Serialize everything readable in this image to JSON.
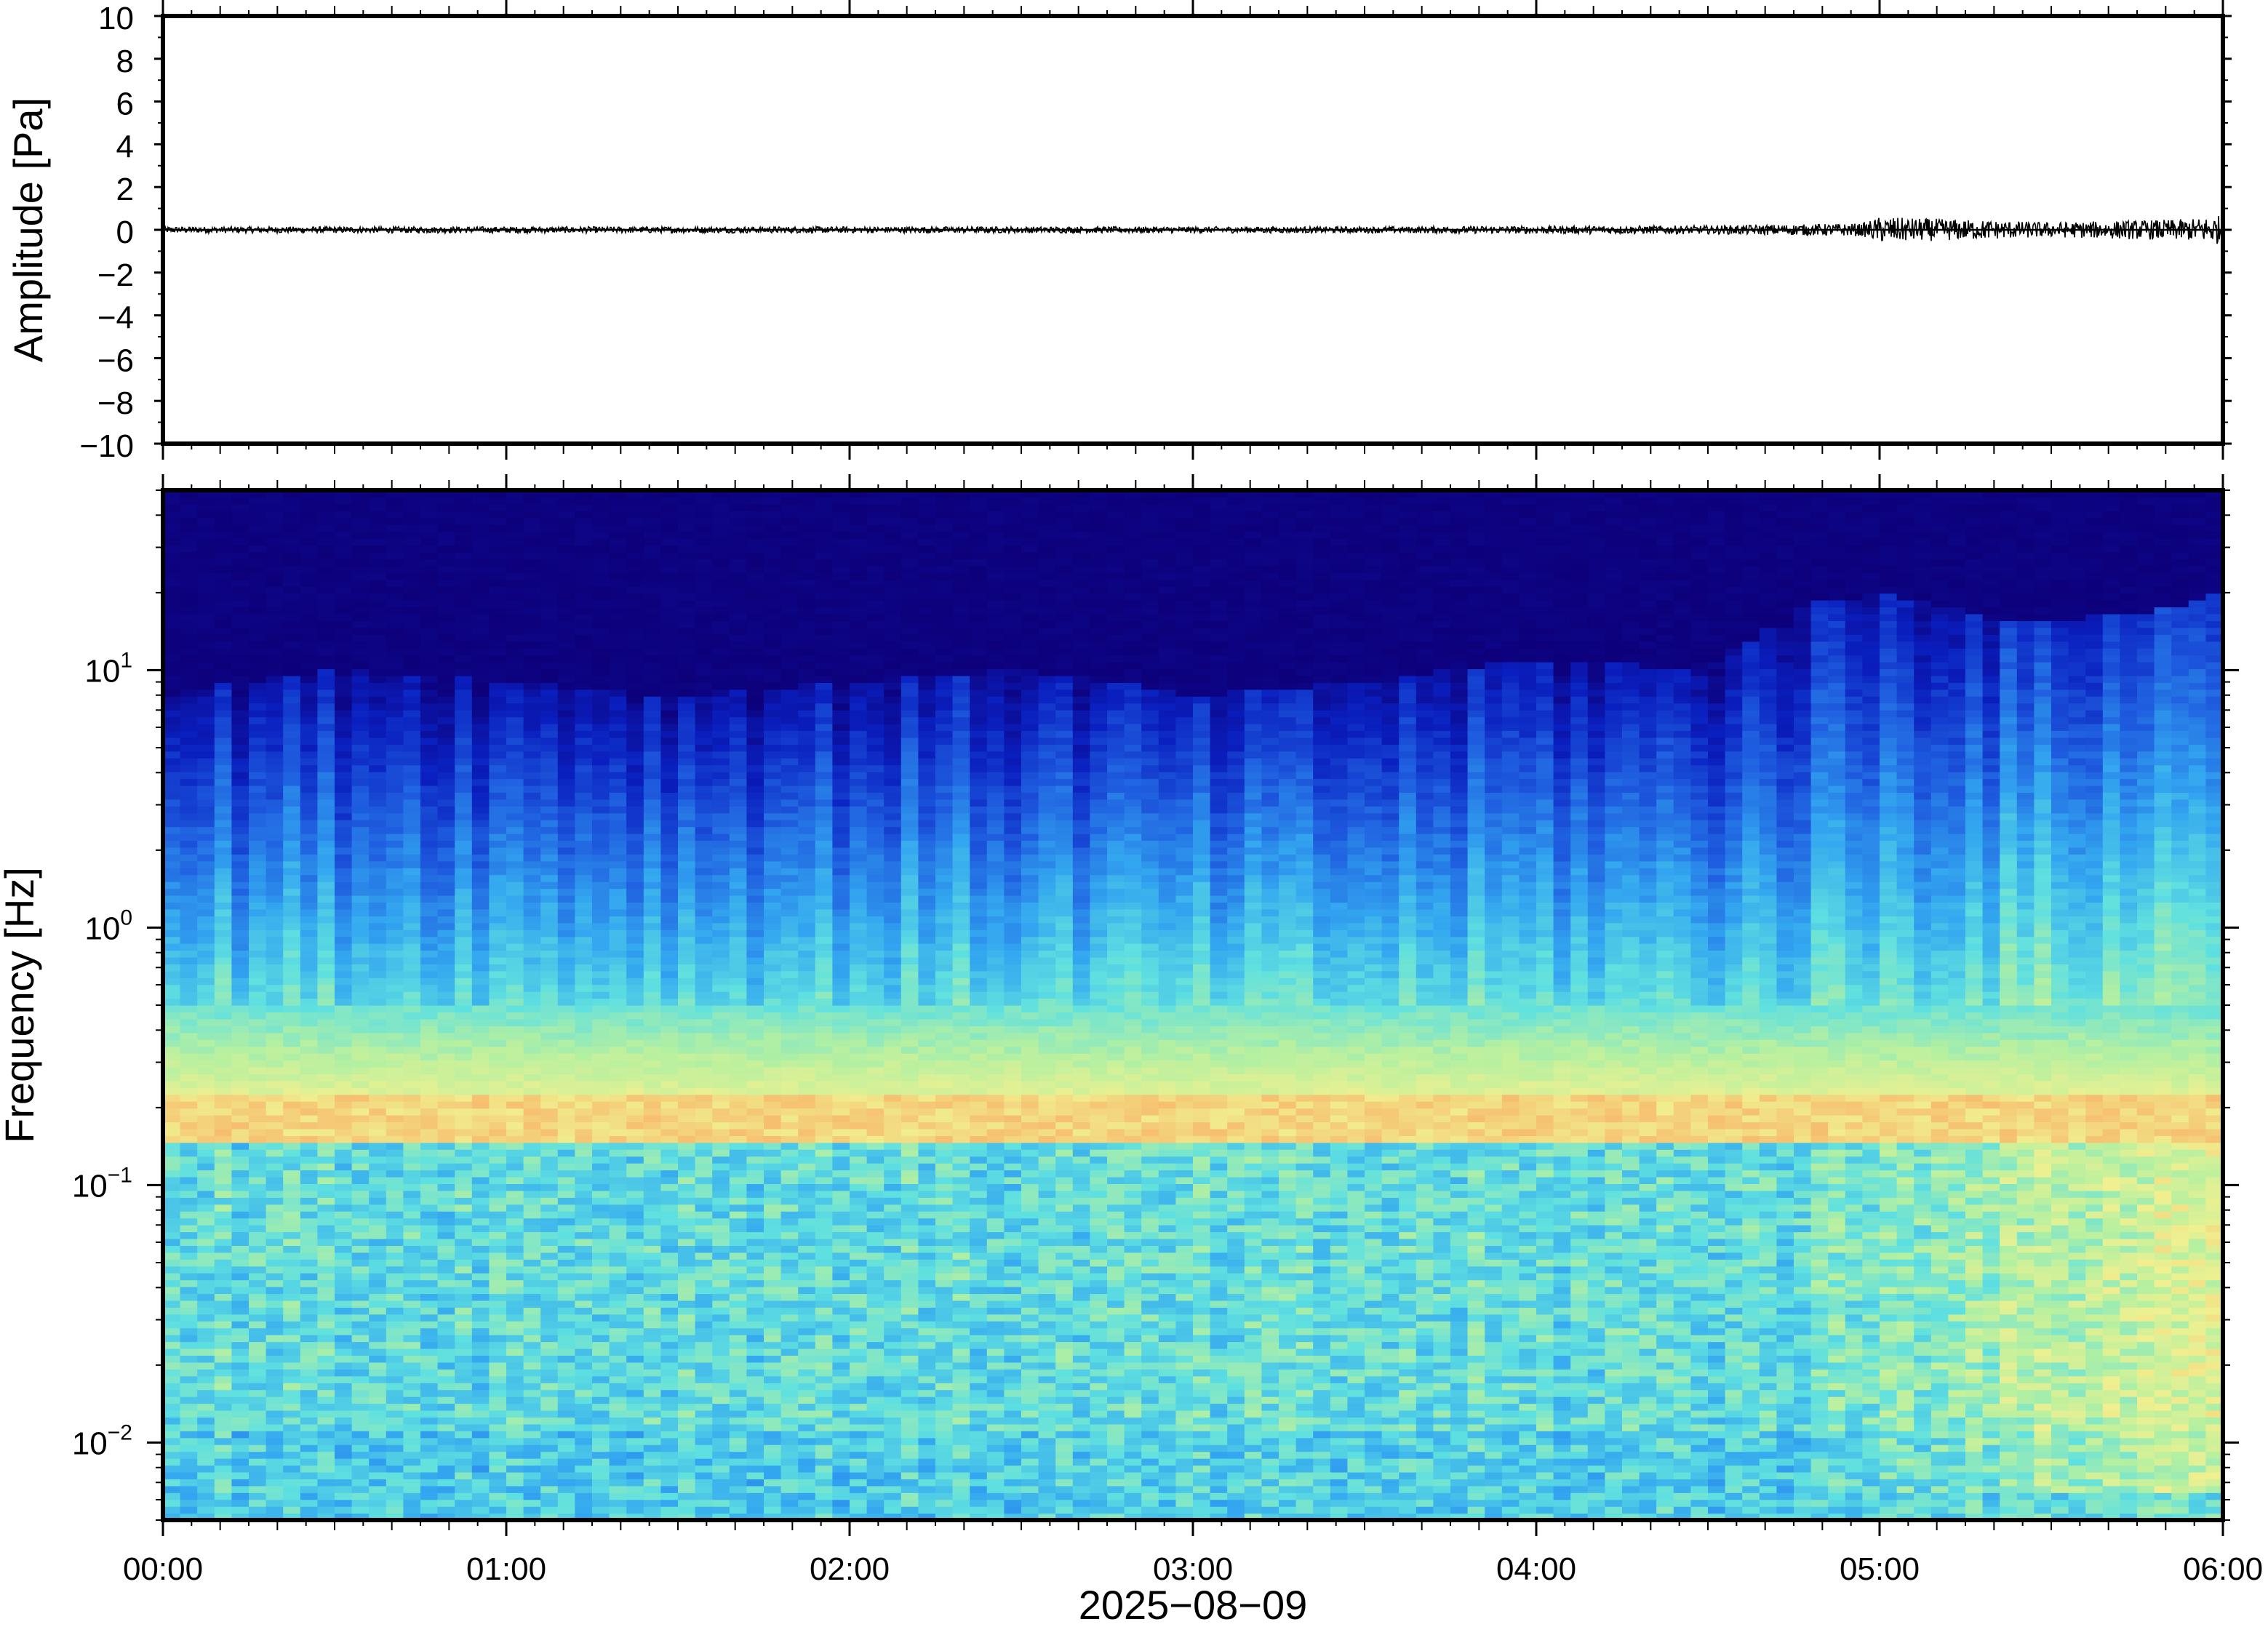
{
  "chart_data": [
    {
      "type": "line",
      "panel": "waveform",
      "ylabel": "Amplitude [Pa]",
      "ylim": [
        -10,
        10
      ],
      "yticks": [
        10,
        8,
        6,
        4,
        2,
        0,
        -2,
        -4,
        -6,
        -8,
        -10
      ],
      "ytick_labels": [
        "10",
        "8",
        "6",
        "4",
        "2",
        "0",
        "−2",
        "−4",
        "−6",
        "−8",
        "−10"
      ],
      "x_range_hours": [
        0,
        6
      ],
      "grid": false,
      "series": [
        {
          "x_hours": [
            0,
            0.5,
            1,
            1.5,
            2,
            2.5,
            3,
            3.5,
            4,
            4.5,
            4.95,
            5.0,
            5.5,
            5.9,
            6.0
          ],
          "envelope_pa": [
            0.15,
            0.15,
            0.15,
            0.15,
            0.15,
            0.15,
            0.15,
            0.15,
            0.18,
            0.2,
            0.3,
            0.6,
            0.35,
            0.5,
            0.7
          ],
          "color": "#000000"
        }
      ]
    },
    {
      "type": "heatmap",
      "panel": "spectrogram",
      "ylabel": "Frequency [Hz]",
      "xlabel": "2025−08−09",
      "yscale": "log",
      "ylim_hz": [
        0.005,
        50
      ],
      "ytick_labels": [
        {
          "base": "10",
          "exp": "1",
          "value": 10
        },
        {
          "base": "10",
          "exp": "0",
          "value": 1
        },
        {
          "base": "10",
          "exp": "−1",
          "value": 0.1
        },
        {
          "base": "10",
          "exp": "−2",
          "value": 0.01
        }
      ],
      "xtick_labels": [
        "00:00",
        "01:00",
        "02:00",
        "03:00",
        "04:00",
        "05:00",
        "06:00"
      ],
      "x_range_hours": [
        0,
        6
      ],
      "colormap": [
        "#0d007a",
        "#0a1fbf",
        "#1f5fe0",
        "#33a6f0",
        "#5fe0e0",
        "#b6f0a0",
        "#f0f090",
        "#f6c070",
        "#f08a50"
      ],
      "upper_energy_cutoff_hz": [
        8,
        10,
        9,
        8,
        9,
        10,
        8,
        9,
        11,
        10,
        18,
        20,
        15,
        17,
        20
      ],
      "cutoff_times_hours": [
        0,
        0.5,
        1,
        1.5,
        2,
        2.5,
        3,
        3.5,
        4,
        4.5,
        4.8,
        5.0,
        5.4,
        5.8,
        6.0
      ],
      "microbarom_band_hz": [
        0.15,
        0.22
      ],
      "grid": false
    }
  ]
}
